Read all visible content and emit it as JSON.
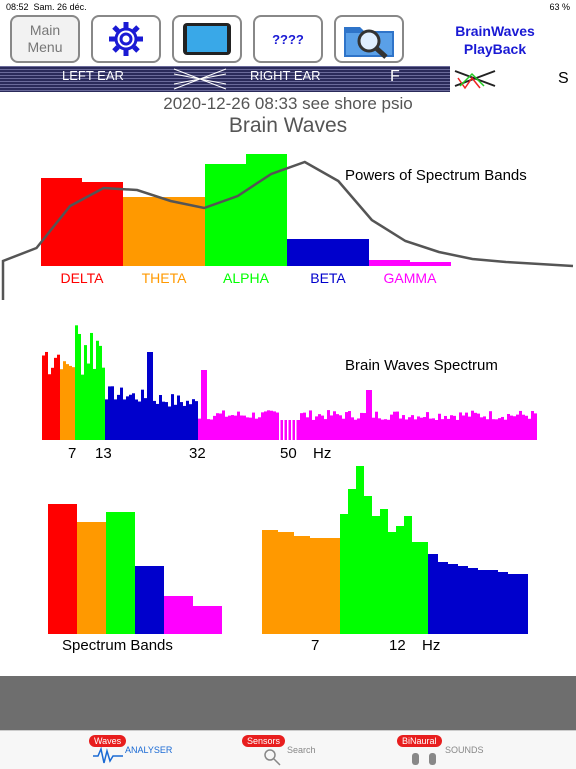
{
  "status": {
    "time": "08:52",
    "date": "Sam. 26 déc.",
    "battery": "63 %"
  },
  "toolbar": {
    "menu_line1": "Main",
    "menu_line2": "Menu",
    "question_label": "????",
    "app_title_line1": "BrainWaves",
    "app_title_line2": "PlayBack"
  },
  "ear_bar": {
    "left_label": "LEFT EAR",
    "right_label": "RIGHT EAR",
    "side_letter": "F",
    "right_letter": "S"
  },
  "session": {
    "timestamp_line": "2020-12-26 08:33 see shore psio",
    "title": "Brain Waves"
  },
  "colors": {
    "delta": "#ff0000",
    "theta": "#ff9900",
    "alpha": "#00ff00",
    "beta": "#0000cc",
    "gamma": "#ff00ff",
    "gray_bar": "#6e6e6e",
    "accent": "#1a1ad4",
    "badge": "#e81e1e"
  },
  "chart_data": [
    {
      "type": "bar",
      "title": "Powers of Spectrum Bands",
      "categories": [
        "DELTA",
        "THETA",
        "ALPHA",
        "BETA",
        "GAMMA"
      ],
      "values": [
        88,
        69,
        112,
        27,
        6
      ],
      "trend_line": [
        5,
        18,
        60,
        78,
        76,
        65,
        58,
        70,
        92,
        104,
        85,
        46,
        25,
        14,
        7,
        4,
        2,
        0
      ]
    },
    {
      "type": "bar",
      "title": "Brain Waves Spectrum",
      "x_ticks": [
        "7",
        "13",
        "32",
        "50"
      ],
      "x_unit": "Hz"
    },
    {
      "type": "bar",
      "title": "Spectrum Bands",
      "values": [
        130,
        112,
        122,
        68,
        38,
        28
      ]
    },
    {
      "type": "bar",
      "x_ticks": [
        "7",
        "12"
      ],
      "x_unit": "Hz"
    }
  ],
  "tabs": [
    {
      "badge": "Waves",
      "label": "ANALYSER"
    },
    {
      "badge": "Sensors",
      "label": "Search"
    },
    {
      "badge": "BiNaural",
      "label": "SOUNDS"
    }
  ]
}
